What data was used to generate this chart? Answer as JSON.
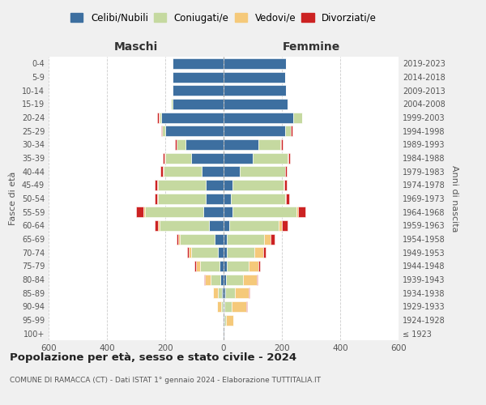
{
  "age_groups": [
    "100+",
    "95-99",
    "90-94",
    "85-89",
    "80-84",
    "75-79",
    "70-74",
    "65-69",
    "60-64",
    "55-59",
    "50-54",
    "45-49",
    "40-44",
    "35-39",
    "30-34",
    "25-29",
    "20-24",
    "15-19",
    "10-14",
    "5-9",
    "0-4"
  ],
  "birth_years": [
    "≤ 1923",
    "1924-1928",
    "1929-1933",
    "1934-1938",
    "1939-1943",
    "1944-1948",
    "1949-1953",
    "1954-1958",
    "1959-1963",
    "1964-1968",
    "1969-1973",
    "1974-1978",
    "1979-1983",
    "1984-1988",
    "1989-1993",
    "1994-1998",
    "1999-2003",
    "2004-2008",
    "2009-2013",
    "2014-2018",
    "2019-2023"
  ],
  "colors": {
    "celibi": "#3d6fa0",
    "coniugati": "#c5d9a0",
    "vedovi": "#f5c97a",
    "divorziati": "#cc2222"
  },
  "maschi": {
    "celibi": [
      2,
      2,
      3,
      5,
      10,
      15,
      20,
      30,
      50,
      70,
      60,
      60,
      75,
      110,
      130,
      200,
      215,
      175,
      175,
      175,
      175
    ],
    "coniugati": [
      0,
      0,
      5,
      15,
      35,
      65,
      90,
      120,
      170,
      200,
      165,
      165,
      130,
      90,
      30,
      10,
      5,
      5,
      0,
      0,
      0
    ],
    "vedovi": [
      0,
      2,
      15,
      15,
      20,
      15,
      10,
      5,
      5,
      5,
      2,
      2,
      2,
      2,
      2,
      0,
      2,
      0,
      0,
      0,
      0
    ],
    "divorziati": [
      0,
      0,
      0,
      2,
      2,
      5,
      5,
      5,
      10,
      25,
      10,
      8,
      10,
      5,
      5,
      5,
      5,
      0,
      0,
      0,
      0
    ]
  },
  "femmine": {
    "celibi": [
      2,
      2,
      3,
      5,
      8,
      10,
      10,
      10,
      20,
      30,
      25,
      30,
      55,
      100,
      120,
      210,
      240,
      220,
      215,
      210,
      215
    ],
    "coniugati": [
      0,
      5,
      25,
      35,
      60,
      75,
      95,
      130,
      170,
      220,
      185,
      175,
      155,
      120,
      75,
      20,
      30,
      0,
      0,
      0,
      0
    ],
    "vedovi": [
      2,
      25,
      50,
      45,
      45,
      35,
      30,
      20,
      10,
      5,
      5,
      2,
      2,
      2,
      2,
      0,
      0,
      0,
      0,
      0,
      0
    ],
    "divorziati": [
      0,
      2,
      2,
      5,
      5,
      5,
      10,
      15,
      20,
      25,
      10,
      10,
      5,
      5,
      5,
      5,
      0,
      0,
      0,
      0,
      0
    ]
  },
  "xlim": 600,
  "title": "Popolazione per età, sesso e stato civile - 2024",
  "subtitle": "COMUNE DI RAMACCA (CT) - Dati ISTAT 1° gennaio 2024 - Elaborazione TUTTITALIA.IT",
  "xlabel_left": "Maschi",
  "xlabel_right": "Femmine",
  "ylabel_left": "Fasce di età",
  "ylabel_right": "Anni di nascita",
  "legend_labels": [
    "Celibi/Nubili",
    "Coniugati/e",
    "Vedovi/e",
    "Divorziati/e"
  ],
  "bg_color": "#f0f0f0",
  "plot_bg_color": "#ffffff"
}
